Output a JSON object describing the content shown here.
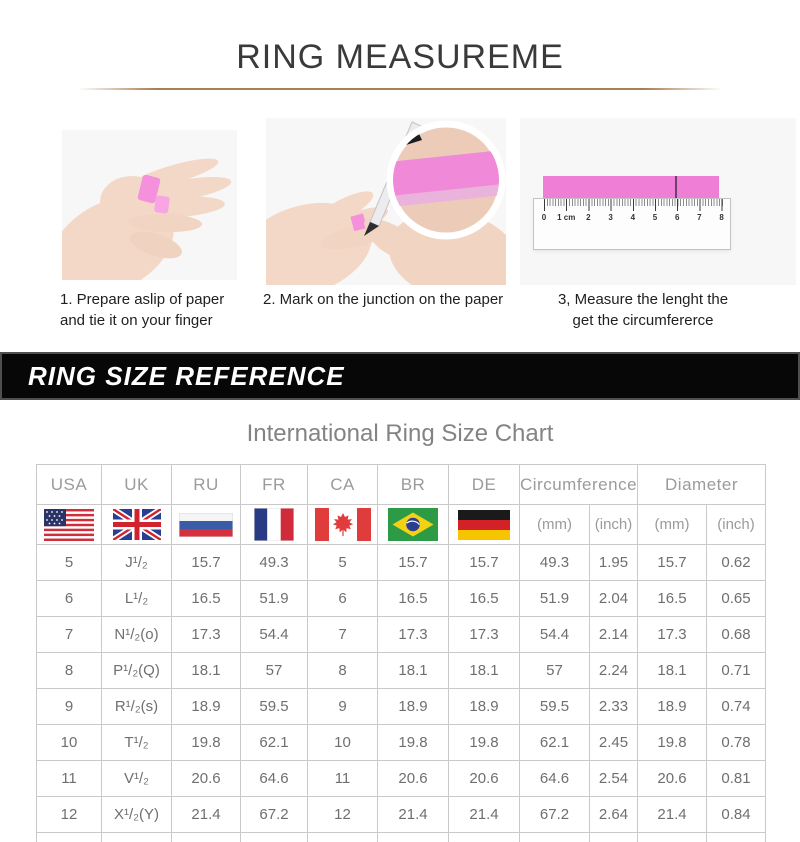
{
  "header": {
    "title": "RING MEASUREME"
  },
  "steps": [
    {
      "line1": "1. Prepare aslip of paper",
      "line2": "and tie it on your finger"
    },
    {
      "line1": "2. Mark on the junction on the paper",
      "line2": ""
    },
    {
      "line1": "3, Measure the lenght the",
      "line2": "get the circumfererce"
    }
  ],
  "banner": {
    "title": "RING SIZE REFERENCE"
  },
  "colors": {
    "accent_pink_strip": "#ee7ed6",
    "banner_background": "#070707",
    "divider_tan": "#a87f55"
  },
  "ruler": {
    "labels": [
      "0",
      "1 cm",
      "2",
      "3",
      "4",
      "5",
      "6",
      "7",
      "8"
    ]
  },
  "table": {
    "title": "International Ring Size Chart",
    "country_columns": [
      "USA",
      "UK",
      "RU",
      "FR",
      "CA",
      "BR",
      "DE"
    ],
    "flags": [
      "usa-flag",
      "uk-flag",
      "russia-flag",
      "france-flag",
      "canada-flag",
      "brazil-flag",
      "germany-flag"
    ],
    "group_columns": [
      "Circumference",
      "Diameter"
    ],
    "unit_headers": [
      "(mm)",
      "(inch)",
      "(mm)",
      "(inch)"
    ],
    "rows": [
      [
        "5",
        "J¹/₂",
        "15.7",
        "49.3",
        "5",
        "15.7",
        "15.7",
        "49.3",
        "1.95",
        "15.7",
        "0.62"
      ],
      [
        "6",
        "L¹/₂",
        "16.5",
        "51.9",
        "6",
        "16.5",
        "16.5",
        "51.9",
        "2.04",
        "16.5",
        "0.65"
      ],
      [
        "7",
        "N¹/₂(o)",
        "17.3",
        "54.4",
        "7",
        "17.3",
        "17.3",
        "54.4",
        "2.14",
        "17.3",
        "0.68"
      ],
      [
        "8",
        "P¹/₂(Q)",
        "18.1",
        "57",
        "8",
        "18.1",
        "18.1",
        "57",
        "2.24",
        "18.1",
        "0.71"
      ],
      [
        "9",
        "R¹/₂(s)",
        "18.9",
        "59.5",
        "9",
        "18.9",
        "18.9",
        "59.5",
        "2.33",
        "18.9",
        "0.74"
      ],
      [
        "10",
        "T¹/₂",
        "19.8",
        "62.1",
        "10",
        "19.8",
        "19.8",
        "62.1",
        "2.45",
        "19.8",
        "0.78"
      ],
      [
        "11",
        "V¹/₂",
        "20.6",
        "64.6",
        "11",
        "20.6",
        "20.6",
        "64.6",
        "2.54",
        "20.6",
        "0.81"
      ],
      [
        "12",
        "X¹/₂(Y)",
        "21.4",
        "67.2",
        "12",
        "21.4",
        "21.4",
        "67.2",
        "2.64",
        "21.4",
        "0.84"
      ]
    ]
  }
}
